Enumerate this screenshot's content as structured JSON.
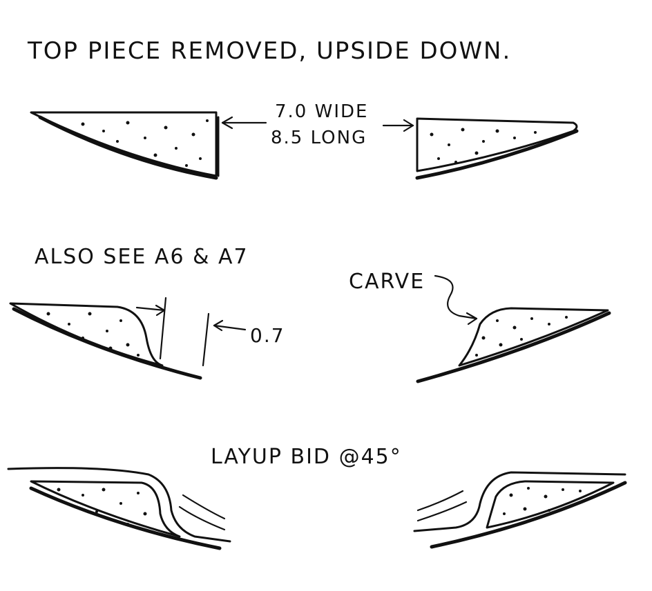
{
  "title": "TOP PIECE REMOVED, UPSIDE DOWN.",
  "dim_wide": "7.0 WIDE",
  "dim_long": "8.5 LONG",
  "also_see": "ALSO SEE A6 & A7",
  "carve": "CARVE",
  "dim_small": "0.7",
  "layup": "LAYUP BID @45°"
}
